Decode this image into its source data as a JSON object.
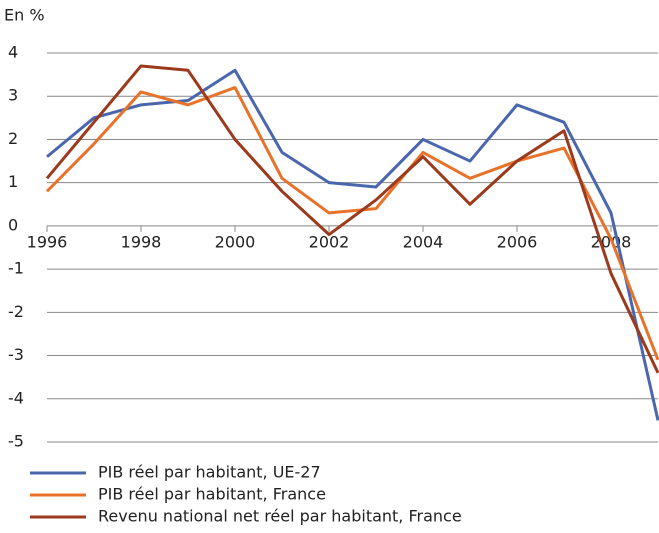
{
  "chart_data": {
    "type": "line",
    "y_label": "En %",
    "x": [
      1996,
      1997,
      1998,
      1999,
      2000,
      2001,
      2002,
      2003,
      2004,
      2005,
      2006,
      2007,
      2008,
      2009
    ],
    "xlim": [
      1996,
      2009
    ],
    "xticks": [
      1996,
      1998,
      2000,
      2002,
      2004,
      2006,
      2008
    ],
    "ylim": [
      -5,
      4
    ],
    "yticks": [
      -5,
      -4,
      -3,
      -2,
      -1,
      0,
      1,
      2,
      3,
      4
    ],
    "grid": true,
    "legend": "bottom-left",
    "series": [
      {
        "name": "PIB réel par habitant, UE-27",
        "color": "#4a66ac",
        "values": [
          1.6,
          2.5,
          2.8,
          2.9,
          3.6,
          1.7,
          1.0,
          0.9,
          2.0,
          1.5,
          2.8,
          2.4,
          0.3,
          -4.5
        ]
      },
      {
        "name": "PIB réel par habitant, France",
        "color": "#e8722a",
        "values": [
          0.8,
          1.9,
          3.1,
          2.8,
          3.2,
          1.1,
          0.3,
          0.4,
          1.7,
          1.1,
          1.5,
          1.8,
          -0.3,
          -3.1
        ]
      },
      {
        "name": "Revenu national net réel par habitant, France",
        "color": "#9b3a1c",
        "values": [
          1.1,
          2.4,
          3.7,
          3.6,
          2.0,
          0.8,
          -0.2,
          0.6,
          1.6,
          0.5,
          1.5,
          2.2,
          -1.1,
          -3.4
        ]
      }
    ]
  }
}
